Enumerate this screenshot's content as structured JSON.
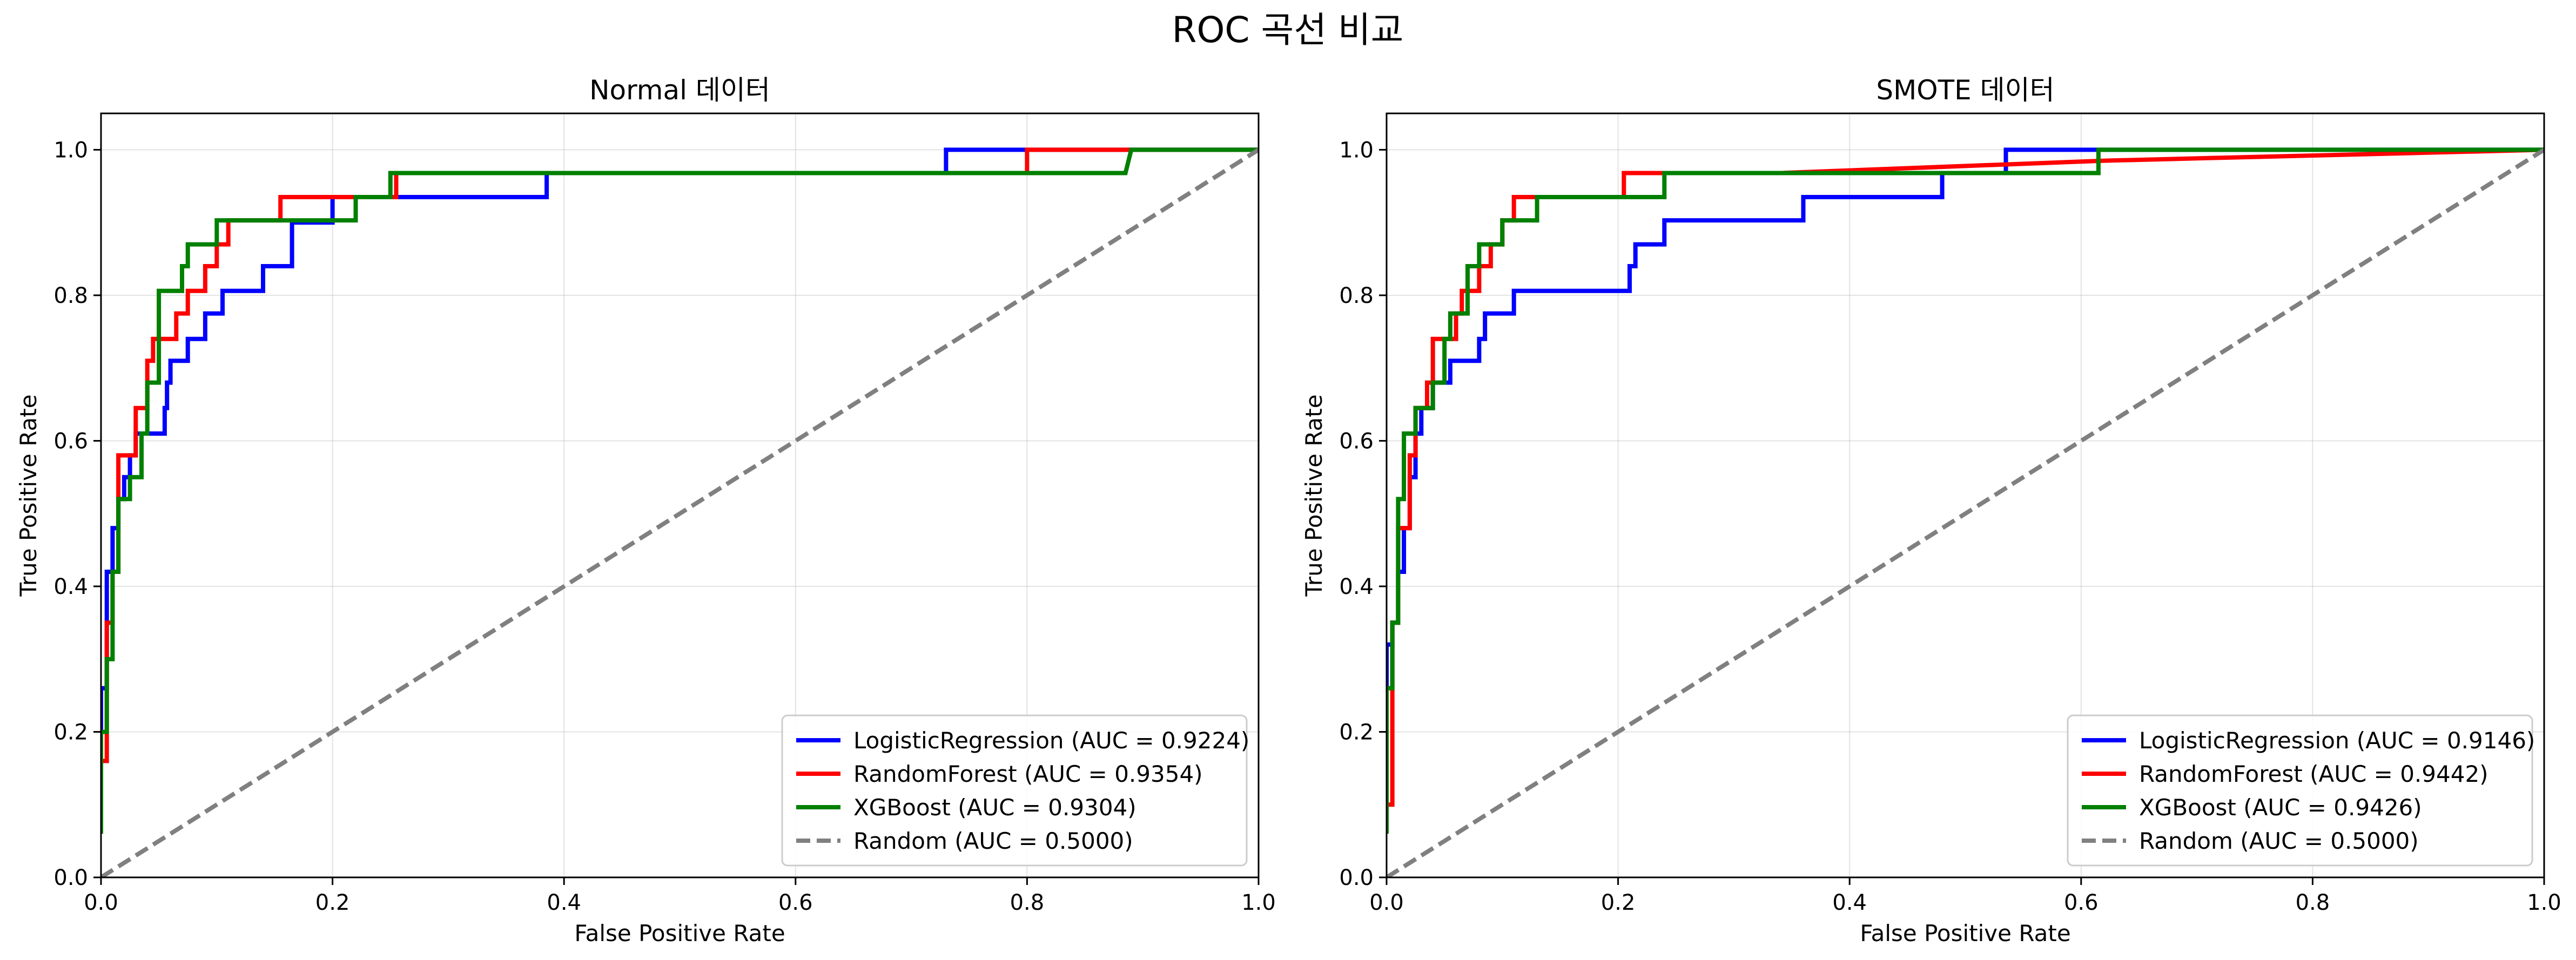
{
  "figure_title": "ROC 곡선 비교",
  "chart_data": [
    {
      "type": "line",
      "title": "Normal 데이터",
      "xlabel": "False Positive Rate",
      "ylabel": "True Positive Rate",
      "xlim": [
        0,
        1.0
      ],
      "ylim": [
        0,
        1.05
      ],
      "xticks": [
        0.0,
        0.2,
        0.4,
        0.6,
        0.8,
        1.0
      ],
      "xtick_labels": [
        "0.0",
        "0.2",
        "0.4",
        "0.6",
        "0.8",
        "1.0"
      ],
      "yticks": [
        0.0,
        0.2,
        0.4,
        0.6,
        0.8,
        1.0
      ],
      "ytick_labels": [
        "0.0",
        "0.2",
        "0.4",
        "0.6",
        "0.8",
        "1.0"
      ],
      "grid": true,
      "legend_position": "lower-right",
      "series": [
        {
          "name": "LogisticRegression",
          "legend": "LogisticRegression (AUC = 0.9224)",
          "auc": 0.9224,
          "color": "#0000ff",
          "dashed": false,
          "x": [
            0,
            0,
            0.005,
            0.005,
            0.01,
            0.01,
            0.015,
            0.015,
            0.02,
            0.02,
            0.025,
            0.025,
            0.03,
            0.03,
            0.035,
            0.035,
            0.04,
            0.04,
            0.055,
            0.055,
            0.057,
            0.057,
            0.06,
            0.06,
            0.075,
            0.075,
            0.09,
            0.09,
            0.105,
            0.105,
            0.14,
            0.14,
            0.165,
            0.165,
            0.2,
            0.2,
            0.26,
            0.26,
            0.385,
            0.385,
            0.73,
            0.73,
            1.0
          ],
          "y": [
            0.06,
            0.26,
            0.26,
            0.42,
            0.42,
            0.48,
            0.48,
            0.52,
            0.52,
            0.55,
            0.55,
            0.58,
            0.58,
            0.61,
            0.61,
            0.61,
            0.61,
            0.61,
            0.61,
            0.645,
            0.645,
            0.68,
            0.68,
            0.71,
            0.71,
            0.74,
            0.74,
            0.775,
            0.775,
            0.806,
            0.806,
            0.84,
            0.84,
            0.9,
            0.9,
            0.935,
            0.935,
            0.935,
            0.935,
            0.968,
            0.968,
            1.0,
            1.0
          ]
        },
        {
          "name": "RandomForest",
          "legend": "RandomForest (AUC = 0.9354)",
          "auc": 0.9354,
          "color": "#ff0000",
          "dashed": false,
          "x": [
            0,
            0,
            0.005,
            0.005,
            0.01,
            0.01,
            0.015,
            0.015,
            0.03,
            0.03,
            0.04,
            0.04,
            0.045,
            0.045,
            0.055,
            0.055,
            0.065,
            0.065,
            0.075,
            0.075,
            0.09,
            0.09,
            0.1,
            0.1,
            0.11,
            0.11,
            0.155,
            0.155,
            0.255,
            0.255,
            0.8,
            0.8,
            1.0
          ],
          "y": [
            0.1,
            0.16,
            0.16,
            0.35,
            0.35,
            0.42,
            0.42,
            0.58,
            0.58,
            0.645,
            0.645,
            0.71,
            0.71,
            0.74,
            0.74,
            0.74,
            0.74,
            0.775,
            0.775,
            0.806,
            0.806,
            0.84,
            0.84,
            0.87,
            0.87,
            0.903,
            0.903,
            0.935,
            0.935,
            0.968,
            0.968,
            1.0,
            1.0
          ]
        },
        {
          "name": "XGBoost",
          "legend": "XGBoost (AUC = 0.9304)",
          "auc": 0.9304,
          "color": "#008000",
          "dashed": false,
          "x": [
            0,
            0,
            0.005,
            0.005,
            0.01,
            0.01,
            0.015,
            0.015,
            0.025,
            0.025,
            0.035,
            0.035,
            0.04,
            0.04,
            0.05,
            0.05,
            0.07,
            0.07,
            0.075,
            0.075,
            0.1,
            0.1,
            0.22,
            0.22,
            0.25,
            0.25,
            0.885,
            0.89,
            1.0
          ],
          "y": [
            0.06,
            0.2,
            0.2,
            0.3,
            0.3,
            0.42,
            0.42,
            0.52,
            0.52,
            0.55,
            0.55,
            0.61,
            0.61,
            0.68,
            0.68,
            0.806,
            0.806,
            0.84,
            0.84,
            0.87,
            0.87,
            0.903,
            0.903,
            0.935,
            0.935,
            0.968,
            0.968,
            1.0,
            1.0
          ]
        },
        {
          "name": "Random",
          "legend": "Random (AUC = 0.5000)",
          "auc": 0.5,
          "color": "#808080",
          "dashed": true,
          "x": [
            0,
            1
          ],
          "y": [
            0,
            1
          ]
        }
      ]
    },
    {
      "type": "line",
      "title": "SMOTE 데이터",
      "xlabel": "False Positive Rate",
      "ylabel": "True Positive Rate",
      "xlim": [
        0,
        1.0
      ],
      "ylim": [
        0,
        1.05
      ],
      "xticks": [
        0.0,
        0.2,
        0.4,
        0.6,
        0.8,
        1.0
      ],
      "xtick_labels": [
        "0.0",
        "0.2",
        "0.4",
        "0.6",
        "0.8",
        "1.0"
      ],
      "yticks": [
        0.0,
        0.2,
        0.4,
        0.6,
        0.8,
        1.0
      ],
      "ytick_labels": [
        "0.0",
        "0.2",
        "0.4",
        "0.6",
        "0.8",
        "1.0"
      ],
      "grid": true,
      "legend_position": "lower-right",
      "series": [
        {
          "name": "LogisticRegression",
          "legend": "LogisticRegression (AUC = 0.9146)",
          "auc": 0.9146,
          "color": "#0000ff",
          "dashed": false,
          "x": [
            0,
            0,
            0.005,
            0.005,
            0.01,
            0.01,
            0.015,
            0.015,
            0.02,
            0.02,
            0.025,
            0.025,
            0.03,
            0.03,
            0.04,
            0.04,
            0.055,
            0.055,
            0.08,
            0.08,
            0.085,
            0.085,
            0.11,
            0.11,
            0.21,
            0.21,
            0.215,
            0.215,
            0.225,
            0.225,
            0.24,
            0.24,
            0.36,
            0.36,
            0.48,
            0.48,
            0.535,
            0.535,
            1.0
          ],
          "y": [
            0.16,
            0.32,
            0.32,
            0.35,
            0.35,
            0.42,
            0.42,
            0.48,
            0.48,
            0.55,
            0.55,
            0.61,
            0.61,
            0.645,
            0.645,
            0.68,
            0.68,
            0.71,
            0.71,
            0.74,
            0.74,
            0.775,
            0.775,
            0.806,
            0.806,
            0.84,
            0.84,
            0.87,
            0.87,
            0.87,
            0.87,
            0.903,
            0.903,
            0.935,
            0.935,
            0.968,
            0.968,
            1.0,
            1.0
          ]
        },
        {
          "name": "RandomForest",
          "legend": "RandomForest (AUC = 0.9442)",
          "auc": 0.9442,
          "color": "#ff0000",
          "dashed": false,
          "x": [
            0,
            0,
            0.005,
            0.005,
            0.01,
            0.01,
            0.02,
            0.02,
            0.025,
            0.025,
            0.035,
            0.035,
            0.04,
            0.04,
            0.06,
            0.06,
            0.065,
            0.065,
            0.08,
            0.08,
            0.09,
            0.09,
            0.1,
            0.1,
            0.11,
            0.11,
            0.13,
            0.13,
            0.205,
            0.205,
            0.34,
            0.62,
            1.0
          ],
          "y": [
            0.06,
            0.1,
            0.1,
            0.35,
            0.35,
            0.48,
            0.48,
            0.58,
            0.58,
            0.645,
            0.645,
            0.68,
            0.68,
            0.74,
            0.74,
            0.775,
            0.775,
            0.806,
            0.806,
            0.84,
            0.84,
            0.87,
            0.87,
            0.903,
            0.903,
            0.935,
            0.935,
            0.935,
            0.935,
            0.968,
            0.968,
            0.985,
            1.0
          ]
        },
        {
          "name": "XGBoost",
          "legend": "XGBoost (AUC = 0.9426)",
          "auc": 0.9426,
          "color": "#008000",
          "dashed": false,
          "x": [
            0,
            0,
            0.005,
            0.005,
            0.01,
            0.01,
            0.015,
            0.015,
            0.025,
            0.025,
            0.04,
            0.04,
            0.05,
            0.05,
            0.055,
            0.055,
            0.07,
            0.07,
            0.08,
            0.08,
            0.1,
            0.1,
            0.13,
            0.13,
            0.24,
            0.24,
            0.615,
            0.615,
            1.0
          ],
          "y": [
            0.06,
            0.26,
            0.26,
            0.35,
            0.35,
            0.52,
            0.52,
            0.61,
            0.61,
            0.645,
            0.645,
            0.68,
            0.68,
            0.74,
            0.74,
            0.775,
            0.775,
            0.84,
            0.84,
            0.87,
            0.87,
            0.903,
            0.903,
            0.935,
            0.935,
            0.968,
            0.968,
            1.0,
            1.0
          ]
        },
        {
          "name": "Random",
          "legend": "Random (AUC = 0.5000)",
          "auc": 0.5,
          "color": "#808080",
          "dashed": true,
          "x": [
            0,
            1
          ],
          "y": [
            0,
            1
          ]
        }
      ]
    }
  ]
}
